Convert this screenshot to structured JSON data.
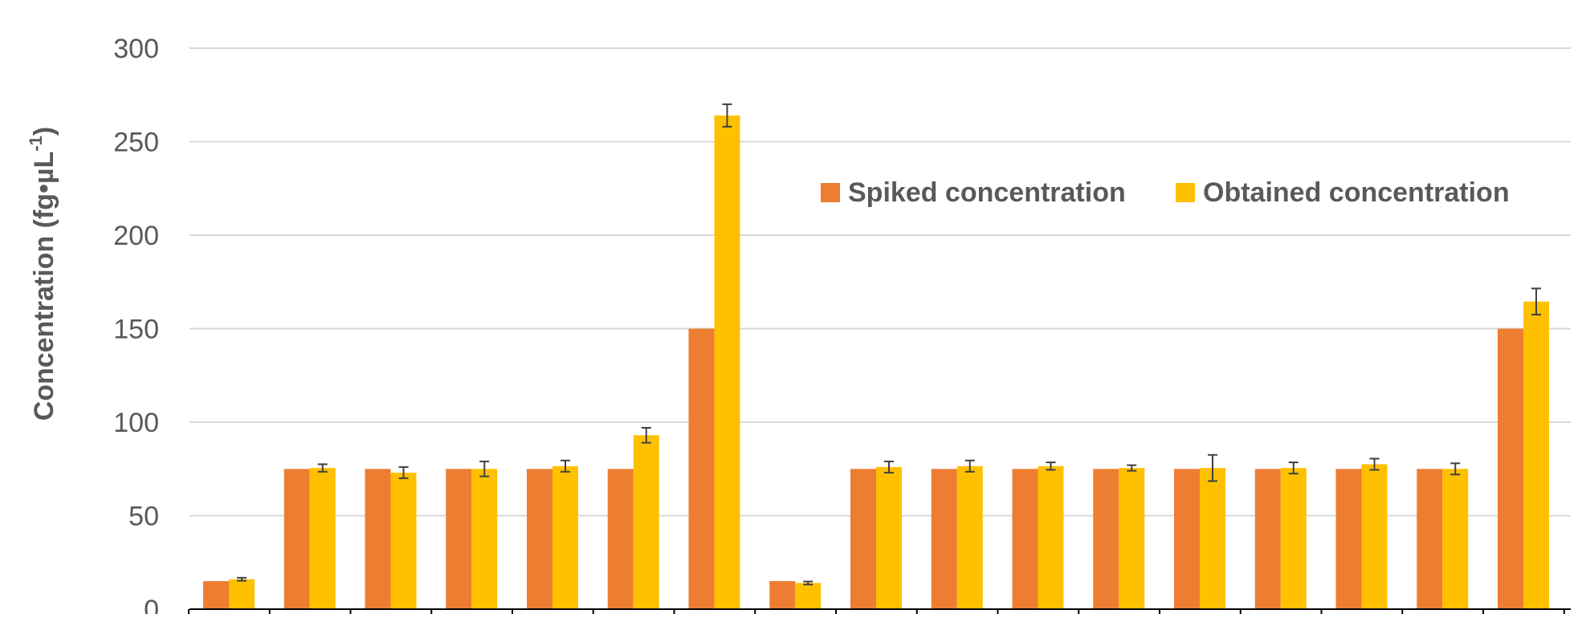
{
  "chart_data": {
    "type": "bar",
    "title": "",
    "xlabel": "",
    "ylabel": {
      "main": "Concentration (fg•µL",
      "superscript": "-1",
      "suffix": ")"
    },
    "ylim": [
      0,
      300
    ],
    "yticks": [
      0,
      50,
      100,
      150,
      200,
      250,
      300
    ],
    "grid": true,
    "legend": {
      "placement": "upper-right",
      "entries": [
        "Spiked concentration",
        "Obtained concentration"
      ]
    },
    "categories": [
      "",
      "",
      "",
      "",
      "",
      "",
      "",
      "",
      "",
      "",
      "",
      "",
      "",
      "",
      "",
      "",
      ""
    ],
    "series": [
      {
        "name": "Spiked concentration",
        "color": "#ED7D31",
        "values": [
          15,
          75,
          75,
          75,
          75,
          75,
          150,
          15,
          75,
          75,
          75,
          75,
          75,
          75,
          75,
          75,
          150
        ]
      },
      {
        "name": "Obtained concentration",
        "color": "#FFC000",
        "values": [
          16,
          75.5,
          73,
          75,
          76.5,
          93,
          264,
          14,
          76,
          76.5,
          76.5,
          75.5,
          75.5,
          75.5,
          77.5,
          75,
          164.5
        ],
        "errors": [
          0.8,
          2,
          3,
          4,
          3,
          4,
          6,
          0.8,
          3,
          3,
          2,
          1.5,
          7,
          3,
          3,
          3,
          7
        ]
      }
    ]
  }
}
